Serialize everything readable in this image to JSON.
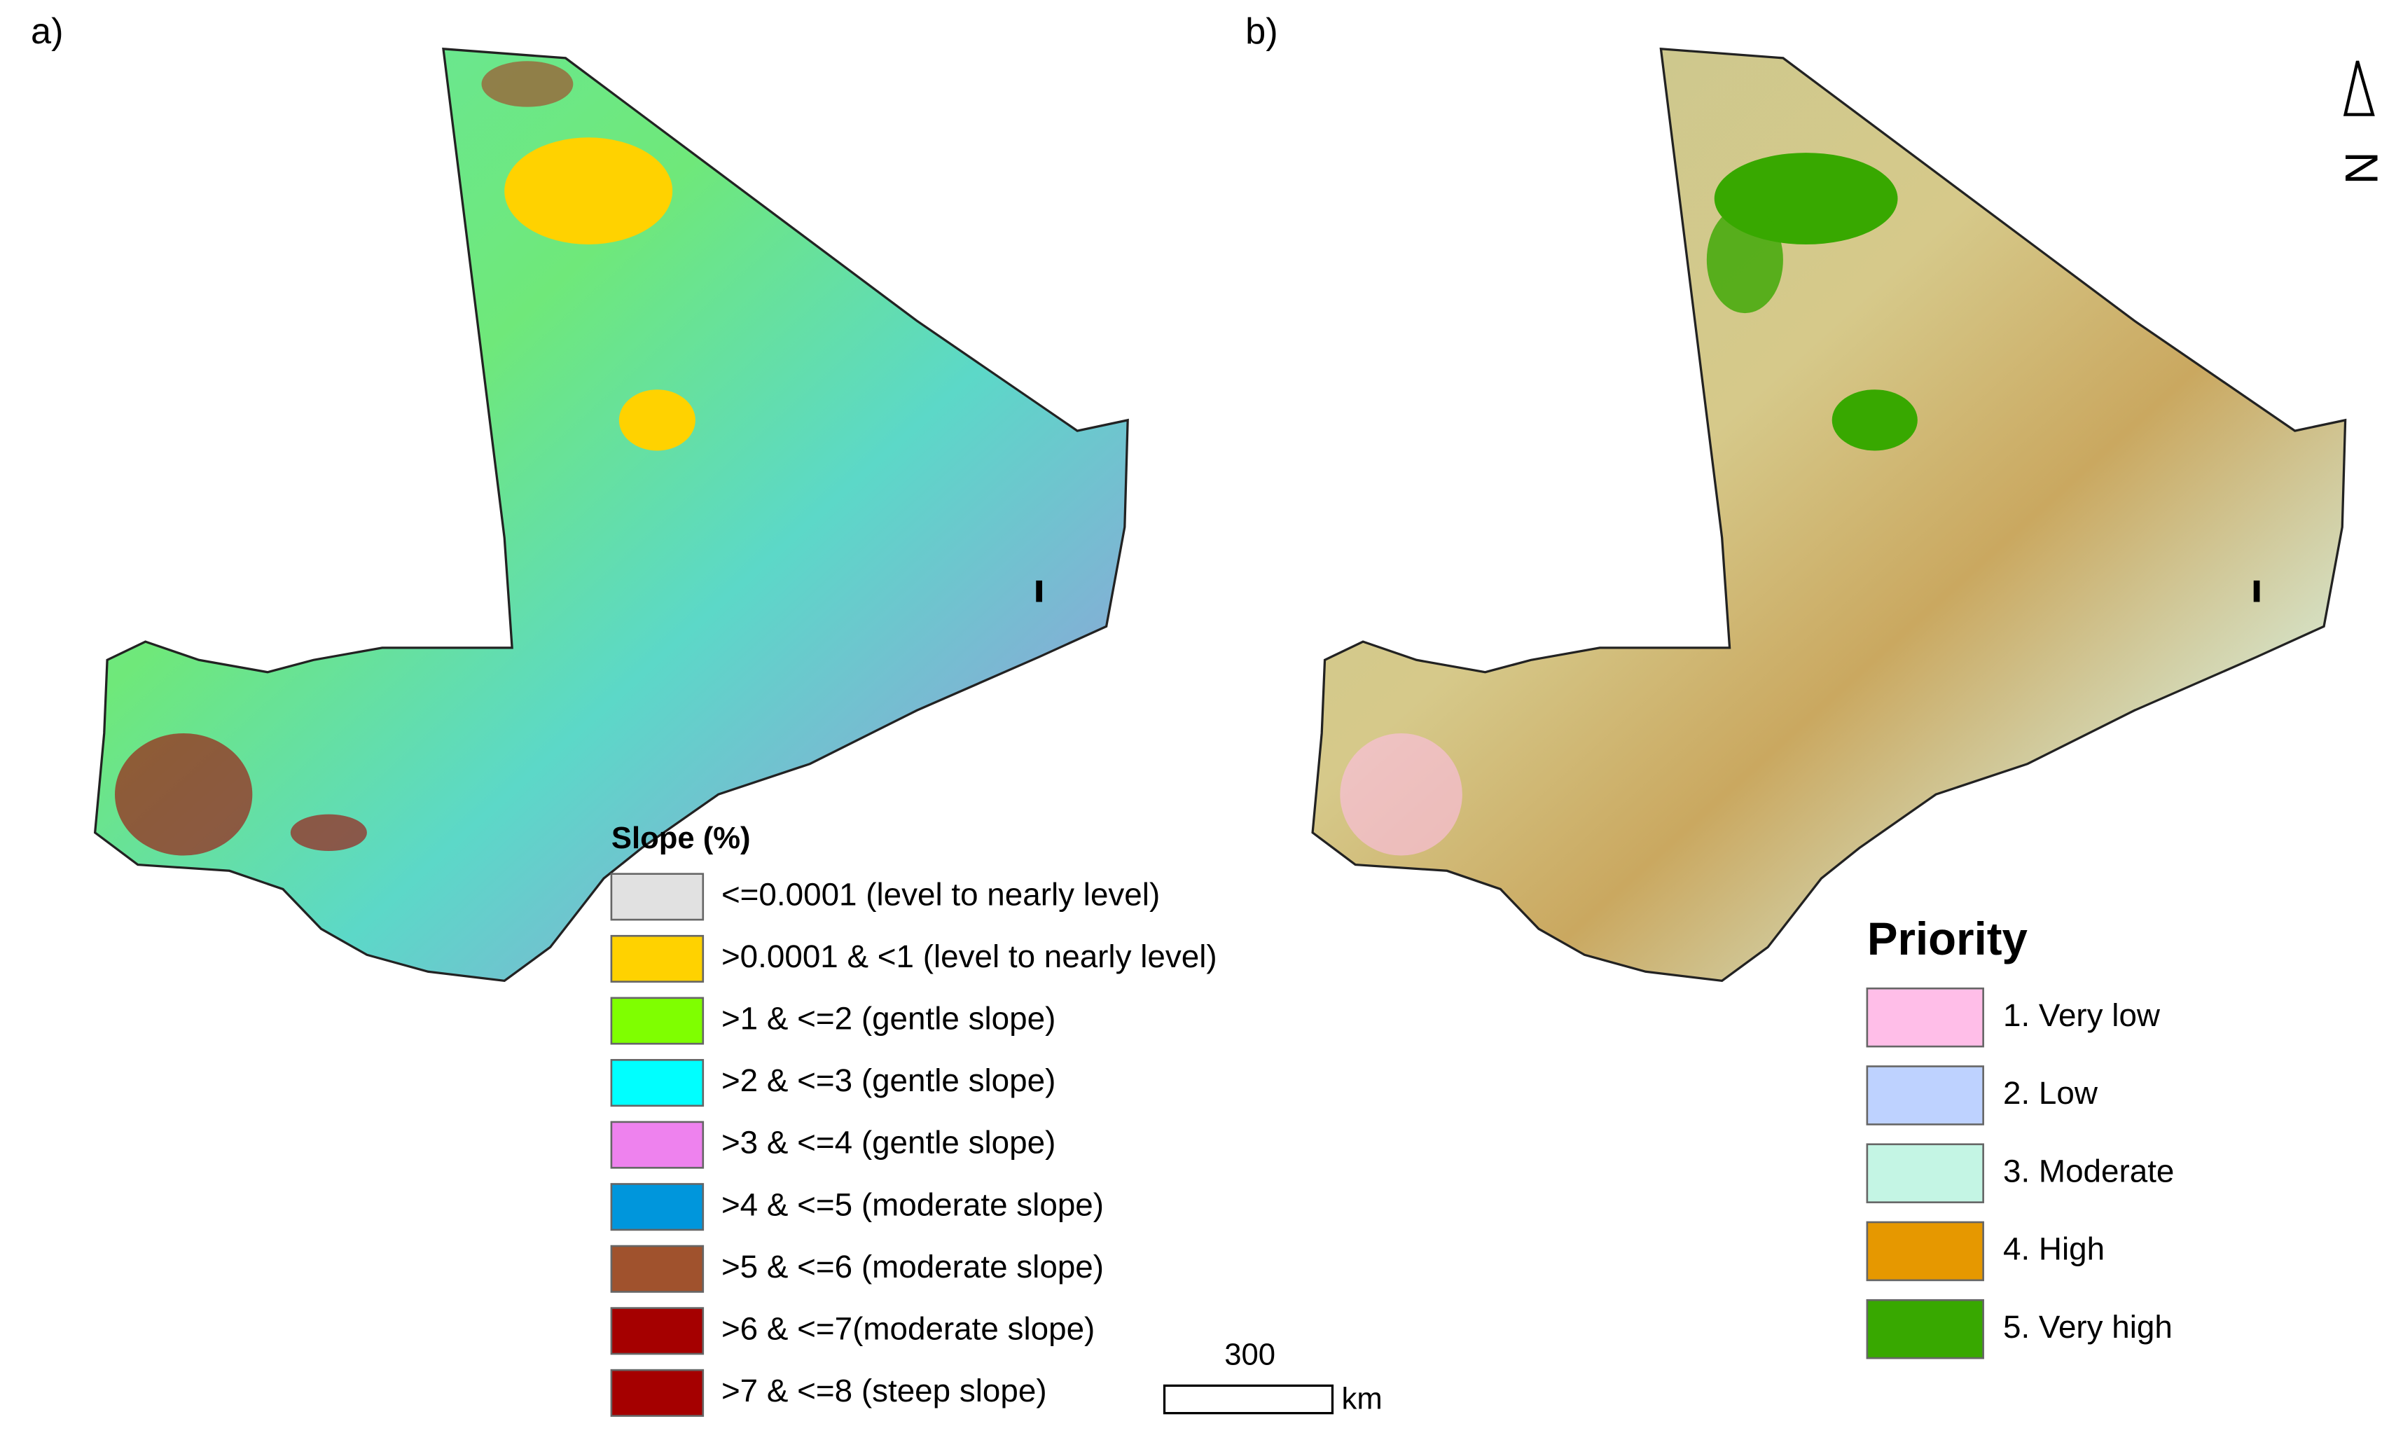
{
  "panels": [
    {
      "label": "a)"
    },
    {
      "label": "b)"
    }
  ],
  "legend_a": {
    "title": "Slope (%)",
    "items": [
      {
        "label": "<=0.0001 (level to nearly level)",
        "color": "#e1e1e1"
      },
      {
        "label": ">0.0001 & <1 (level to nearly level)",
        "color": "#ffd200"
      },
      {
        "label": ">1 & <=2 (gentle slope)",
        "color": "#7fff00"
      },
      {
        "label": ">2 & <=3  (gentle slope)",
        "color": "#00ffff"
      },
      {
        "label": ">3 & <=4  (gentle slope)",
        "color": "#ee82ee"
      },
      {
        "label": ">4 & <=5  (moderate slope)",
        "color": "#0096dc"
      },
      {
        "label": ">5 & <=6 (moderate slope)",
        "color": "#a0522d"
      },
      {
        "label": ">6 & <=7(moderate slope)",
        "color": "#a50000"
      },
      {
        "label": ">7 & <=8 (steep slope)",
        "color": "#a50000"
      }
    ]
  },
  "legend_b": {
    "title": "Priority",
    "items": [
      {
        "label": "1. Very low",
        "color": "#ffbee8"
      },
      {
        "label": "2. Low",
        "color": "#bed2ff"
      },
      {
        "label": "3. Moderate",
        "color": "#c4f5e4"
      },
      {
        "label": "4. High",
        "color": "#e69800"
      },
      {
        "label": "5. Very high",
        "color": "#38a800"
      }
    ]
  },
  "scale_bar": {
    "distance": "300",
    "unit": "km"
  },
  "north_arrow": "N"
}
